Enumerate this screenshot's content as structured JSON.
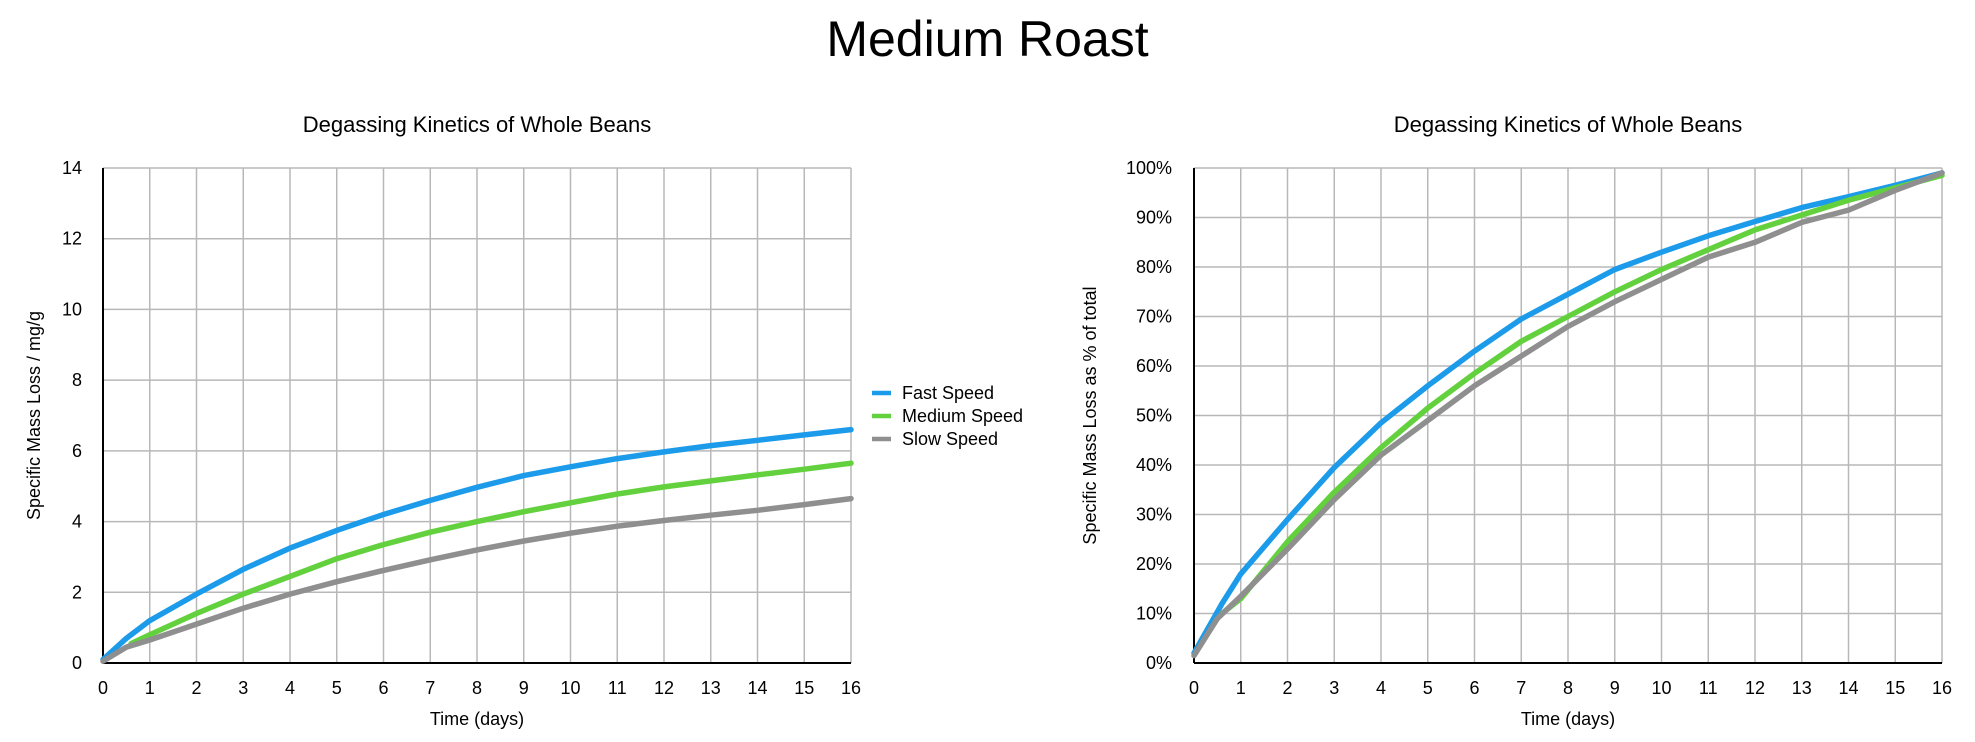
{
  "title": "Medium Roast",
  "colors": {
    "fast": "#1c9bea",
    "medium": "#63d13e",
    "slow": "#8f8f8f",
    "grid": "#b8b8b8"
  },
  "legend": [
    {
      "label": "Fast Speed",
      "color": "#1c9bea"
    },
    {
      "label": "Medium Speed",
      "color": "#63d13e"
    },
    {
      "label": "Slow Speed",
      "color": "#8f8f8f"
    }
  ],
  "chart_data": [
    {
      "type": "line",
      "title": "Degassing Kinetics of Whole Beans",
      "xlabel": "Time (days)",
      "ylabel": "Specific Mass Loss / mg/g",
      "xlim": [
        0,
        16
      ],
      "ylim": [
        0,
        14
      ],
      "xticks": [
        "0",
        "1",
        "2",
        "3",
        "4",
        "5",
        "6",
        "7",
        "8",
        "9",
        "10",
        "11",
        "12",
        "13",
        "14",
        "15",
        "16"
      ],
      "yticks": [
        "0",
        "2",
        "4",
        "6",
        "8",
        "10",
        "12",
        "14"
      ],
      "grid": true,
      "legend_position": "right",
      "series": [
        {
          "name": "Fast Speed",
          "color": "#1c9bea",
          "x": [
            0,
            0.5,
            1,
            2,
            3,
            4,
            5,
            6,
            7,
            8,
            9,
            10,
            11,
            12,
            13,
            14,
            15,
            16
          ],
          "y": [
            0.1,
            0.7,
            1.2,
            1.95,
            2.65,
            3.25,
            3.75,
            4.2,
            4.6,
            4.97,
            5.3,
            5.55,
            5.78,
            5.97,
            6.15,
            6.3,
            6.45,
            6.6
          ]
        },
        {
          "name": "Medium Speed",
          "color": "#63d13e",
          "x": [
            0.6,
            1,
            2,
            3,
            4,
            5,
            6,
            7,
            8,
            9,
            10,
            11,
            12,
            13,
            14,
            15,
            16
          ],
          "y": [
            0.55,
            0.8,
            1.4,
            1.95,
            2.45,
            2.95,
            3.35,
            3.7,
            4.0,
            4.28,
            4.53,
            4.78,
            4.98,
            5.15,
            5.32,
            5.48,
            5.65
          ]
        },
        {
          "name": "Slow Speed",
          "color": "#8f8f8f",
          "x": [
            0,
            0.5,
            1,
            2,
            3,
            4,
            5,
            6,
            7,
            8,
            9,
            10,
            11,
            12,
            13,
            14,
            15,
            16
          ],
          "y": [
            0.05,
            0.45,
            0.65,
            1.1,
            1.55,
            1.95,
            2.3,
            2.62,
            2.92,
            3.2,
            3.45,
            3.67,
            3.87,
            4.03,
            4.18,
            4.32,
            4.48,
            4.65
          ]
        }
      ]
    },
    {
      "type": "line",
      "title": "Degassing Kinetics of Whole Beans",
      "xlabel": "Time (days)",
      "ylabel": "Specific Mass Loss as % of total",
      "xlim": [
        0,
        16
      ],
      "ylim": [
        0,
        100
      ],
      "xticks": [
        "0",
        "1",
        "2",
        "3",
        "4",
        "5",
        "6",
        "7",
        "8",
        "9",
        "10",
        "11",
        "12",
        "13",
        "14",
        "15",
        "16"
      ],
      "yticks": [
        "0%",
        "10%",
        "20%",
        "30%",
        "40%",
        "50%",
        "60%",
        "70%",
        "80%",
        "90%",
        "100%"
      ],
      "grid": true,
      "series": [
        {
          "name": "Fast Speed",
          "color": "#1c9bea",
          "x": [
            0,
            0.6,
            1,
            2,
            3,
            4,
            5,
            6,
            7,
            8,
            9,
            10,
            11,
            12,
            13,
            14,
            15,
            16
          ],
          "y": [
            2,
            12,
            18,
            29,
            39.5,
            48.5,
            56,
            63,
            69.5,
            74.5,
            79.5,
            83,
            86.3,
            89.2,
            92,
            94.2,
            96.5,
            99
          ]
        },
        {
          "name": "Medium Speed",
          "color": "#63d13e",
          "x": [
            0.6,
            1,
            2,
            3,
            4,
            5,
            6,
            7,
            8,
            9,
            10,
            11,
            12,
            13,
            14,
            15,
            16
          ],
          "y": [
            10,
            13,
            24.5,
            34.5,
            43.5,
            51.5,
            58.5,
            65,
            70,
            75,
            79.5,
            83.5,
            87.5,
            90.5,
            93.5,
            96,
            98.5
          ]
        },
        {
          "name": "Slow Speed",
          "color": "#8f8f8f",
          "x": [
            0,
            0.5,
            1,
            2,
            3,
            4,
            5,
            6,
            7,
            8,
            9,
            10,
            11,
            12,
            13,
            14,
            15,
            16
          ],
          "y": [
            1.5,
            9,
            13.5,
            23,
            33,
            42,
            49,
            56,
            62,
            68,
            73,
            77.5,
            82,
            85,
            89,
            91.5,
            95.5,
            99
          ]
        }
      ]
    }
  ]
}
